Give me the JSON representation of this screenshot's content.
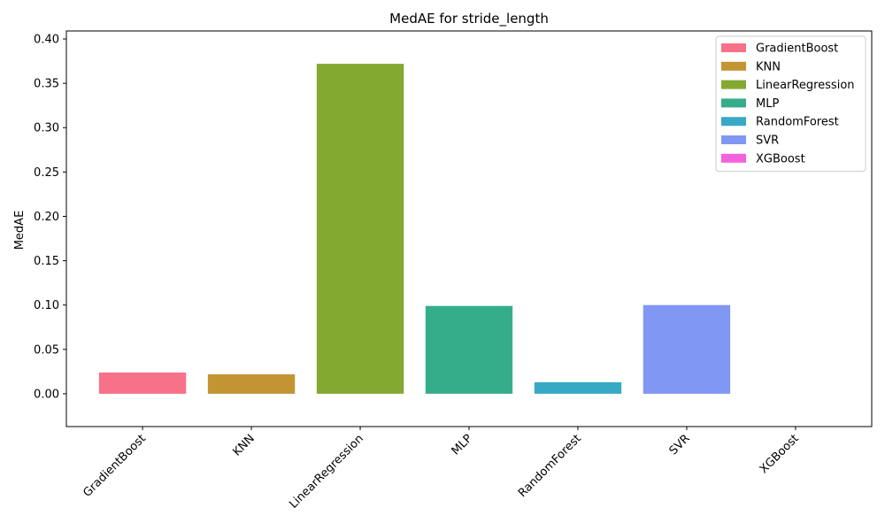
{
  "chart_data": {
    "type": "bar",
    "title": "MedAE for stride_length",
    "xlabel": "",
    "ylabel": "MedAE",
    "categories": [
      "GradientBoost",
      "KNN",
      "LinearRegression",
      "MLP",
      "RandomForest",
      "SVR",
      "XGBoost"
    ],
    "values": [
      0.024,
      0.022,
      0.372,
      0.099,
      0.013,
      0.1,
      0.0
    ],
    "colors": [
      "#f77189",
      "#c39532",
      "#84a931",
      "#36ad8a",
      "#38a9c5",
      "#8197f4",
      "#f461dd"
    ],
    "ylim": [
      -0.037,
      0.409
    ],
    "yticks": [
      0.0,
      0.05,
      0.1,
      0.15,
      0.2,
      0.25,
      0.3,
      0.35,
      0.4
    ],
    "ytick_labels": [
      "0.00",
      "0.05",
      "0.10",
      "0.15",
      "0.20",
      "0.25",
      "0.30",
      "0.35",
      "0.40"
    ],
    "legend": {
      "placement": "top-right",
      "entries": [
        "GradientBoost",
        "KNN",
        "LinearRegression",
        "MLP",
        "RandomForest",
        "SVR",
        "XGBoost"
      ]
    },
    "grid": false
  }
}
